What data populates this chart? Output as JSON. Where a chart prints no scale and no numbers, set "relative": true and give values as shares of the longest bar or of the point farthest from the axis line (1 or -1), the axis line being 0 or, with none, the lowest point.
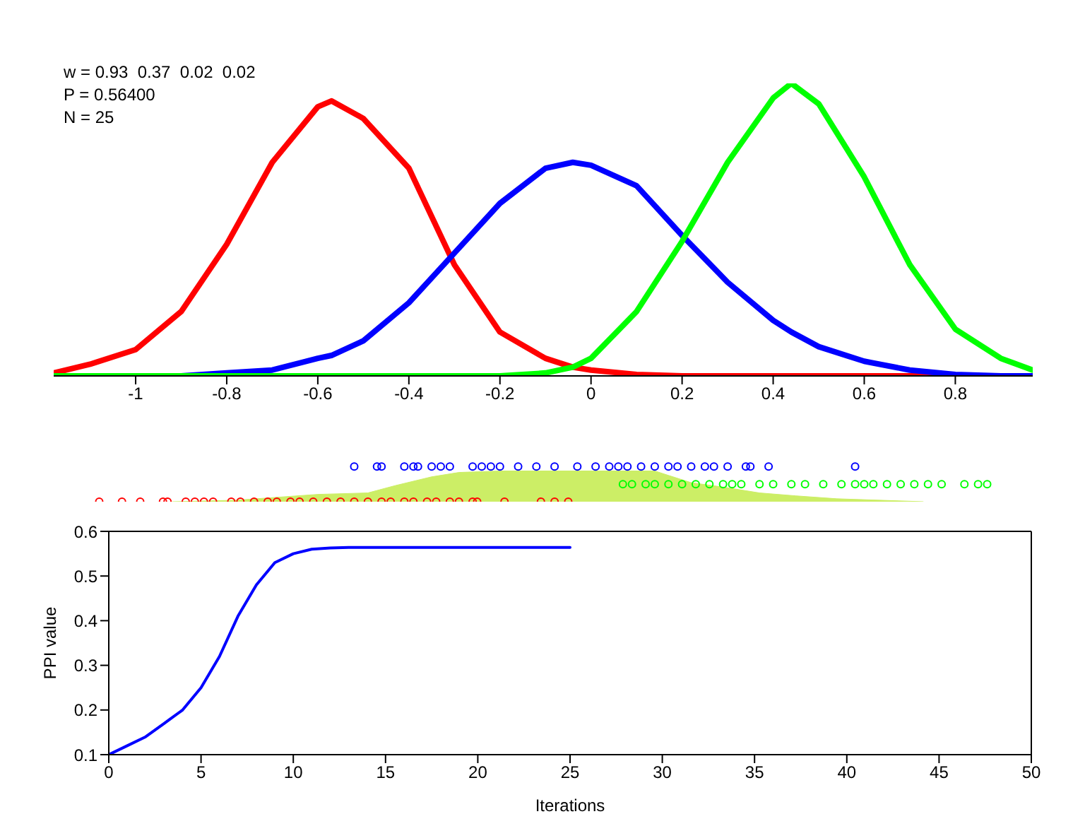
{
  "chart_data": [
    {
      "type": "line",
      "relative": true,
      "tick_labels": "x",
      "xlim": [
        -1.18,
        0.97
      ],
      "xticks": [
        -1,
        -0.8,
        -0.6,
        -0.4,
        -0.2,
        0,
        0.2,
        0.4,
        0.6,
        0.8
      ],
      "annotations": [
        "w = 0.93  0.37  0.02  0.02",
        "P = 0.56400",
        "N = 25"
      ],
      "x": [
        -1.18,
        -1.1,
        -1,
        -0.9,
        -0.8,
        -0.7,
        -0.6,
        -0.57,
        -0.5,
        -0.4,
        -0.3,
        -0.2,
        -0.1,
        -0.04,
        0,
        0.1,
        0.2,
        0.3,
        0.4,
        0.44,
        0.5,
        0.6,
        0.7,
        0.8,
        0.9,
        0.97
      ],
      "series": [
        {
          "color": "#ff0000",
          "values": [
            0.01,
            0.04,
            0.09,
            0.22,
            0.45,
            0.73,
            0.92,
            0.94,
            0.88,
            0.71,
            0.38,
            0.15,
            0.06,
            0.03,
            0.02,
            0.005,
            0,
            0,
            0,
            0,
            0,
            0,
            0,
            0,
            0,
            0
          ]
        },
        {
          "color": "#0000ff",
          "values": [
            null,
            null,
            0,
            0,
            0.01,
            0.02,
            0.06,
            0.07,
            0.12,
            0.25,
            0.42,
            0.59,
            0.71,
            0.73,
            0.72,
            0.65,
            0.48,
            0.32,
            0.19,
            0.15,
            0.1,
            0.05,
            0.02,
            0.005,
            0,
            0
          ]
        },
        {
          "color": "#00ff00",
          "values": [
            0,
            0,
            0,
            0,
            0,
            0,
            0,
            0,
            0,
            0,
            0,
            0,
            0.01,
            0.03,
            0.06,
            0.22,
            0.46,
            0.73,
            0.95,
            1,
            0.93,
            0.68,
            0.38,
            0.16,
            0.06,
            0.02
          ]
        },
        {
          "type": "area",
          "color": "#ccee66",
          "x": [
            -0.92,
            -0.78,
            -0.6,
            -0.49,
            -0.43,
            -0.35,
            -0.29,
            -0.2,
            0.14,
            0.17,
            0.22,
            0.29,
            0.37,
            0.45,
            0.54,
            0.73
          ],
          "values": [
            -0.43,
            -0.425,
            -0.405,
            -0.4,
            -0.375,
            -0.345,
            -0.33,
            -0.325,
            -0.325,
            -0.34,
            -0.365,
            -0.38,
            -0.4,
            -0.41,
            -0.42,
            -0.43
          ]
        },
        {
          "type": "scatter",
          "color": "#ff0000",
          "x": [
            -1.08,
            -1.03,
            -0.99,
            -0.94,
            -0.93,
            -0.89,
            -0.87,
            -0.85,
            -0.83,
            -0.79,
            -0.77,
            -0.74,
            -0.71,
            -0.69,
            -0.66,
            -0.64,
            -0.61,
            -0.58,
            -0.55,
            -0.52,
            -0.49,
            -0.46,
            -0.44,
            -0.41,
            -0.39,
            -0.36,
            -0.34,
            -0.31,
            -0.29,
            -0.26,
            -0.25,
            -0.19,
            -0.11,
            -0.08,
            -0.05
          ],
          "values": [
            -0.43,
            -0.43,
            -0.43,
            -0.43,
            -0.43,
            -0.43,
            -0.43,
            -0.43,
            -0.43,
            -0.43,
            -0.43,
            -0.43,
            -0.43,
            -0.43,
            -0.43,
            -0.43,
            -0.43,
            -0.43,
            -0.43,
            -0.43,
            -0.43,
            -0.43,
            -0.43,
            -0.43,
            -0.43,
            -0.43,
            -0.43,
            -0.43,
            -0.43,
            -0.43,
            -0.43,
            -0.43,
            -0.43,
            -0.43,
            -0.43
          ]
        },
        {
          "type": "scatter",
          "color": "#00ff00",
          "x": [
            0.07,
            0.09,
            0.12,
            0.14,
            0.17,
            0.2,
            0.23,
            0.26,
            0.29,
            0.31,
            0.33,
            0.37,
            0.4,
            0.44,
            0.47,
            0.51,
            0.55,
            0.58,
            0.6,
            0.62,
            0.65,
            0.68,
            0.71,
            0.74,
            0.77,
            0.82,
            0.85,
            0.87
          ],
          "values": [
            -0.37,
            -0.37,
            -0.37,
            -0.37,
            -0.37,
            -0.37,
            -0.37,
            -0.37,
            -0.37,
            -0.37,
            -0.37,
            -0.37,
            -0.37,
            -0.37,
            -0.37,
            -0.37,
            -0.37,
            -0.37,
            -0.37,
            -0.37,
            -0.37,
            -0.37,
            -0.37,
            -0.37,
            -0.37,
            -0.37,
            -0.37,
            -0.37
          ]
        },
        {
          "type": "scatter",
          "color": "#0000ff",
          "x": [
            -0.52,
            -0.47,
            -0.46,
            -0.41,
            -0.39,
            -0.38,
            -0.35,
            -0.33,
            -0.31,
            -0.26,
            -0.24,
            -0.22,
            -0.2,
            -0.16,
            -0.12,
            -0.08,
            -0.03,
            0.01,
            0.04,
            0.06,
            0.08,
            0.11,
            0.14,
            0.17,
            0.19,
            0.22,
            0.25,
            0.27,
            0.3,
            0.34,
            0.35,
            0.39,
            0.58
          ],
          "values": [
            -0.31,
            -0.31,
            -0.31,
            -0.31,
            -0.31,
            -0.31,
            -0.31,
            -0.31,
            -0.31,
            -0.31,
            -0.31,
            -0.31,
            -0.31,
            -0.31,
            -0.31,
            -0.31,
            -0.31,
            -0.31,
            -0.31,
            -0.31,
            -0.31,
            -0.31,
            -0.31,
            -0.31,
            -0.31,
            -0.31,
            -0.31,
            -0.31,
            -0.31,
            -0.31,
            -0.31,
            -0.31,
            -0.31
          ]
        }
      ]
    },
    {
      "type": "line",
      "xlabel": "Iterations",
      "ylabel": "PPI value",
      "xlim": [
        0,
        50
      ],
      "xticks": [
        0,
        5,
        10,
        15,
        20,
        25,
        30,
        35,
        40,
        45,
        50
      ],
      "ylim": [
        0.1,
        0.6
      ],
      "yticks": [
        0.1,
        0.2,
        0.3,
        0.4,
        0.5,
        0.6
      ],
      "x": [
        0,
        1,
        2,
        3,
        4,
        5,
        6,
        7,
        8,
        9,
        10,
        11,
        12,
        13,
        25
      ],
      "series": [
        {
          "color": "#0000ff",
          "values": [
            0.1,
            0.12,
            0.14,
            0.17,
            0.2,
            0.25,
            0.32,
            0.41,
            0.48,
            0.53,
            0.55,
            0.56,
            0.563,
            0.564,
            0.564
          ]
        }
      ]
    }
  ]
}
